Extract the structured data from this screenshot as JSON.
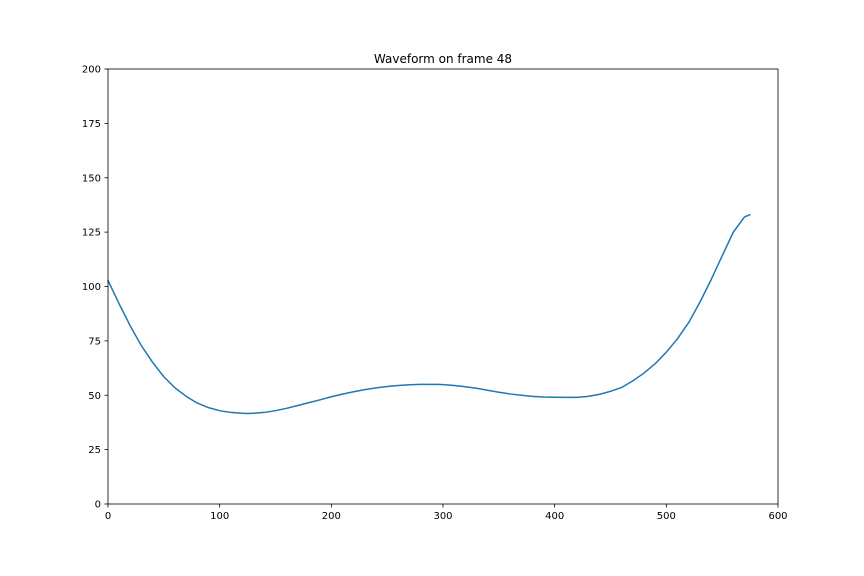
{
  "chart_data": {
    "type": "line",
    "title": "Waveform on frame 48",
    "xlabel": "",
    "ylabel": "",
    "xlim": [
      0,
      600
    ],
    "ylim": [
      0,
      200
    ],
    "xticks": [
      0,
      100,
      200,
      300,
      400,
      500,
      600
    ],
    "yticks": [
      0,
      25,
      50,
      75,
      100,
      125,
      150,
      175,
      200
    ],
    "grid": false,
    "legend": "none",
    "series": [
      {
        "color": "#1f77b4",
        "x": [
          0,
          10,
          20,
          30,
          40,
          50,
          60,
          70,
          80,
          90,
          100,
          110,
          120,
          125,
          130,
          140,
          150,
          160,
          170,
          180,
          190,
          200,
          210,
          220,
          230,
          240,
          250,
          260,
          270,
          280,
          290,
          295,
          300,
          310,
          320,
          330,
          340,
          350,
          360,
          370,
          380,
          390,
          400,
          410,
          420,
          430,
          440,
          450,
          460,
          470,
          480,
          490,
          500,
          510,
          520,
          530,
          540,
          550,
          560,
          570,
          575
        ],
        "y": [
          102.8,
          92.0,
          81.8,
          72.7,
          65.1,
          58.5,
          53.4,
          49.5,
          46.4,
          44.3,
          42.9,
          42.1,
          41.7,
          41.6,
          41.7,
          42.1,
          42.9,
          44.0,
          45.3,
          46.6,
          47.9,
          49.3,
          50.5,
          51.6,
          52.6,
          53.4,
          54.0,
          54.5,
          54.8,
          55.0,
          55.0,
          55.0,
          54.9,
          54.5,
          53.9,
          53.2,
          52.3,
          51.4,
          50.6,
          50.0,
          49.5,
          49.2,
          49.1,
          49.0,
          49.0,
          49.5,
          50.4,
          51.8,
          53.6,
          56.6,
          60.2,
          64.5,
          69.8,
          76.0,
          83.4,
          92.7,
          103.0,
          114.1,
          125.0,
          132.0,
          133.0
        ]
      }
    ]
  }
}
